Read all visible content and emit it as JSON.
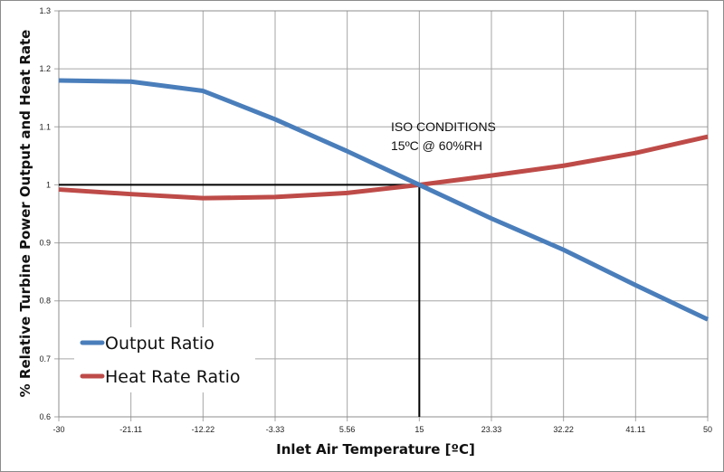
{
  "chart_data": {
    "type": "line",
    "title": "",
    "xlabel": "Inlet Air Temperature  [ºC]",
    "ylabel": "% Relative  Turbine Power Output and Heat Rate",
    "categories": [
      "-30",
      "-21.11",
      "-12.22",
      "-3.33",
      "5.56",
      "15",
      "23.33",
      "32.22",
      "41.11",
      "50"
    ],
    "ylim": [
      0.6,
      1.3
    ],
    "yticks": [
      "0.6",
      "0.7",
      "0.8",
      "0.9",
      "1",
      "1.1",
      "1.2",
      "1.3"
    ],
    "ytick_values": [
      0.6,
      0.7,
      0.8,
      0.9,
      1.0,
      1.1,
      1.2,
      1.3
    ],
    "grid": true,
    "legend_position": "bottom-left",
    "series": [
      {
        "name": "Output Ratio",
        "color": "#4a7ebb",
        "values": [
          1.18,
          1.178,
          1.162,
          1.113,
          1.058,
          1.0,
          0.942,
          0.888,
          0.827,
          0.768
        ]
      },
      {
        "name": "Heat Rate Ratio",
        "color": "#be4b48",
        "values": [
          0.992,
          0.984,
          0.977,
          0.979,
          0.986,
          1.0,
          1.016,
          1.033,
          1.055,
          1.083
        ]
      }
    ],
    "reference": {
      "x_category": "15",
      "y_value": 1.0,
      "color": "#000000"
    },
    "annotation": {
      "line1": "ISO CONDITIONS",
      "line2": "15ºC @ 60%RH"
    }
  }
}
